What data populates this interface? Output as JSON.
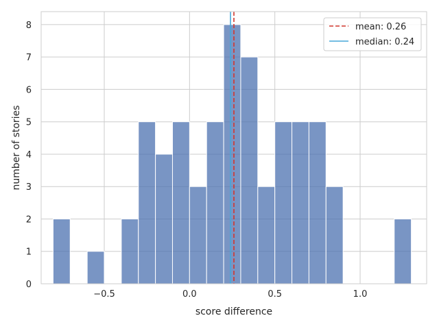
{
  "chart_data": {
    "type": "bar",
    "subtype": "histogram",
    "xlabel": "score difference",
    "ylabel": "number of stories",
    "xlim": [
      -0.87,
      1.39
    ],
    "ylim": [
      0,
      8.4
    ],
    "xticks": [
      -0.5,
      0.0,
      0.5,
      1.0
    ],
    "xtick_labels": [
      "−0.5",
      "0.0",
      "0.5",
      "1.0"
    ],
    "yticks": [
      0,
      1,
      2,
      3,
      4,
      5,
      6,
      7,
      8
    ],
    "ytick_labels": [
      "0",
      "1",
      "2",
      "3",
      "4",
      "5",
      "6",
      "7",
      "8"
    ],
    "grid": true,
    "bar_color": "#4c72b0",
    "bins": [
      {
        "x0": -0.8,
        "x1": -0.7,
        "count": 2
      },
      {
        "x0": -0.7,
        "x1": -0.6,
        "count": 0
      },
      {
        "x0": -0.6,
        "x1": -0.5,
        "count": 1
      },
      {
        "x0": -0.5,
        "x1": -0.4,
        "count": 0
      },
      {
        "x0": -0.4,
        "x1": -0.3,
        "count": 2
      },
      {
        "x0": -0.3,
        "x1": -0.2,
        "count": 5
      },
      {
        "x0": -0.2,
        "x1": -0.1,
        "count": 4
      },
      {
        "x0": -0.1,
        "x1": 0.0,
        "count": 5
      },
      {
        "x0": 0.0,
        "x1": 0.1,
        "count": 3
      },
      {
        "x0": 0.1,
        "x1": 0.2,
        "count": 5
      },
      {
        "x0": 0.2,
        "x1": 0.3,
        "count": 8
      },
      {
        "x0": 0.3,
        "x1": 0.4,
        "count": 7
      },
      {
        "x0": 0.4,
        "x1": 0.5,
        "count": 3
      },
      {
        "x0": 0.5,
        "x1": 0.6,
        "count": 5
      },
      {
        "x0": 0.6,
        "x1": 0.7,
        "count": 5
      },
      {
        "x0": 0.7,
        "x1": 0.8,
        "count": 5
      },
      {
        "x0": 0.8,
        "x1": 0.9,
        "count": 3
      },
      {
        "x0": 0.9,
        "x1": 1.0,
        "count": 0
      },
      {
        "x0": 1.0,
        "x1": 1.1,
        "count": 0
      },
      {
        "x0": 1.1,
        "x1": 1.2,
        "count": 0
      },
      {
        "x0": 1.2,
        "x1": 1.3,
        "count": 2
      }
    ],
    "reference_lines": [
      {
        "label": "mean: 0.26",
        "value": 0.26,
        "color": "#d1352b",
        "style": "dashed"
      },
      {
        "label": "median: 0.24",
        "value": 0.24,
        "color": "#45a7d9",
        "style": "solid"
      }
    ],
    "legend_position": "top-right"
  }
}
